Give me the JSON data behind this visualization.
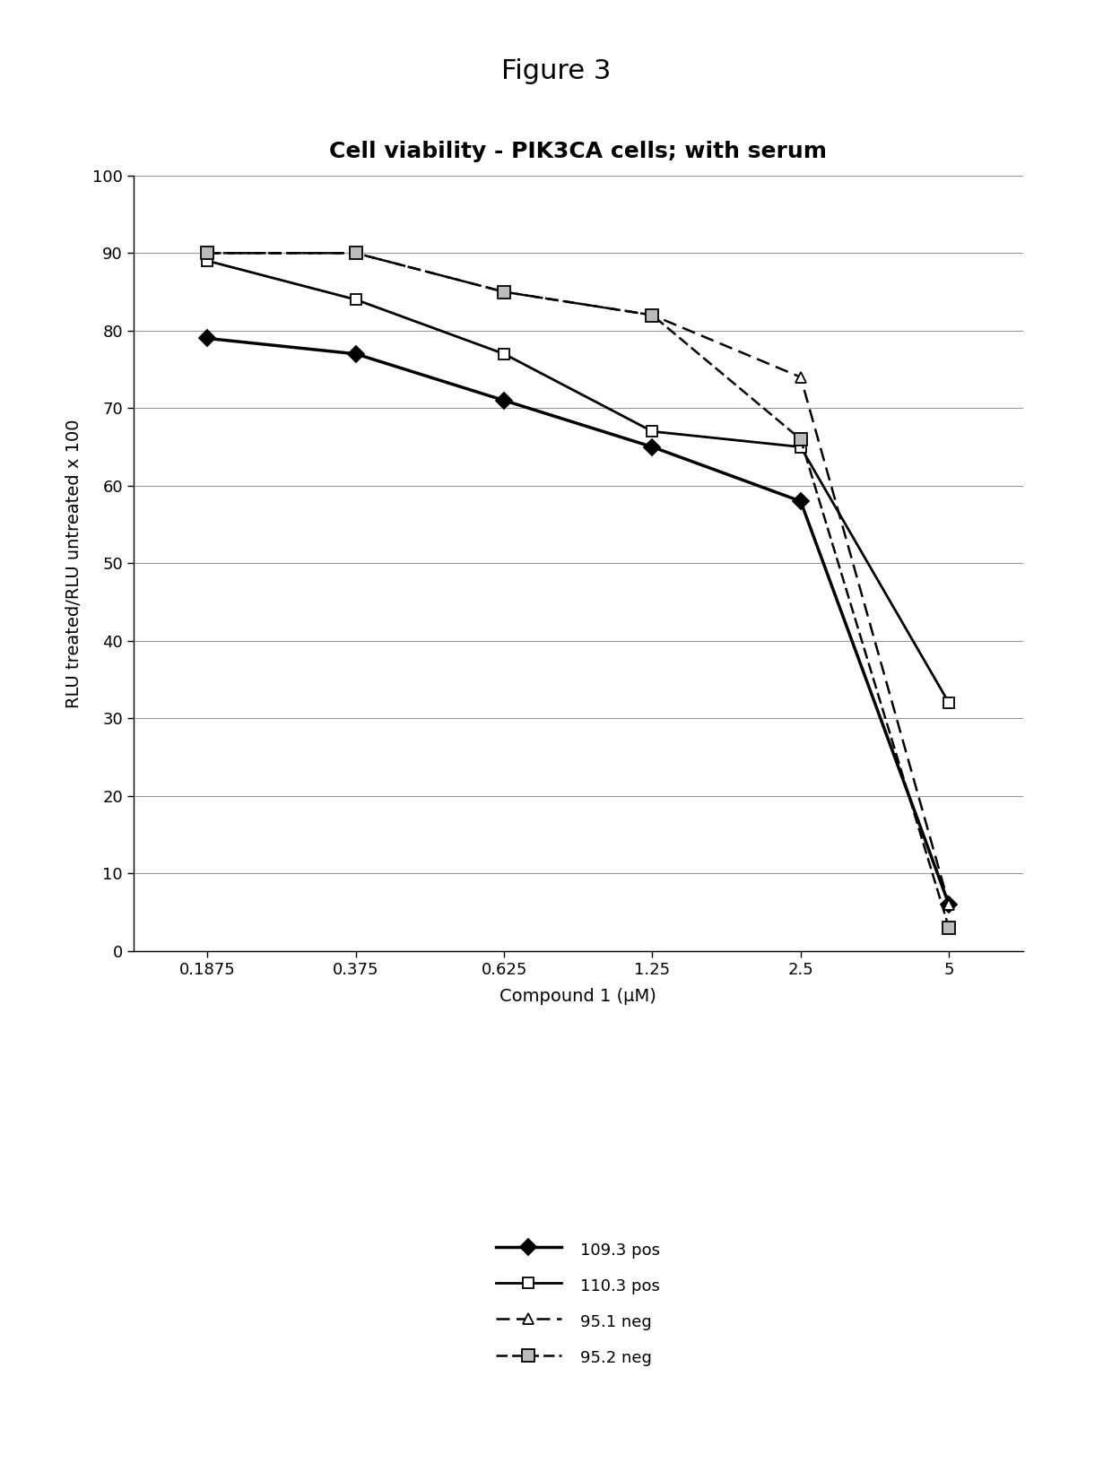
{
  "figure_title": "Figure 3",
  "chart_title": "Cell viability - PIK3CA cells; with serum",
  "xlabel": "Compound 1 (μM)",
  "ylabel": "RLU treated/RLU untreated x 100",
  "xlim_labels": [
    "0.1875",
    "0.375",
    "0.625",
    "1.25",
    "2.5",
    "5"
  ],
  "x_values": [
    0.1875,
    0.375,
    0.625,
    1.25,
    2.5,
    5
  ],
  "ylim": [
    0,
    100
  ],
  "yticks": [
    0,
    10,
    20,
    30,
    40,
    50,
    60,
    70,
    80,
    90,
    100
  ],
  "series": [
    {
      "label": "109.3 pos",
      "y": [
        79,
        77,
        71,
        65,
        58,
        6
      ],
      "color": "#000000",
      "linestyle": "solid",
      "linewidth": 2.5,
      "marker": "D",
      "markersize": 9,
      "markerfacecolor": "#000000",
      "markeredgecolor": "#000000"
    },
    {
      "label": "110.3 pos",
      "y": [
        89,
        84,
        77,
        67,
        65,
        32
      ],
      "color": "#000000",
      "linestyle": "solid",
      "linewidth": 2.0,
      "marker": "s",
      "markersize": 9,
      "markerfacecolor": "#ffffff",
      "markeredgecolor": "#000000"
    },
    {
      "label": "95.1 neg",
      "y": [
        90,
        90,
        85,
        82,
        74,
        6
      ],
      "color": "#000000",
      "linestyle": "dashed",
      "linewidth": 1.8,
      "marker": "^",
      "markersize": 9,
      "markerfacecolor": "#ffffff",
      "markeredgecolor": "#000000"
    },
    {
      "label": "95.2 neg",
      "y": [
        90,
        90,
        85,
        82,
        66,
        3
      ],
      "color": "#000000",
      "linestyle": "dashed",
      "linewidth": 1.8,
      "marker": "s",
      "markersize": 10,
      "markerfacecolor": "#bbbbbb",
      "markeredgecolor": "#000000"
    }
  ],
  "background_color": "#ffffff",
  "grid_color": "#999999",
  "figure_title_fontsize": 22,
  "chart_title_fontsize": 18,
  "axis_label_fontsize": 14,
  "tick_fontsize": 13,
  "legend_fontsize": 13
}
